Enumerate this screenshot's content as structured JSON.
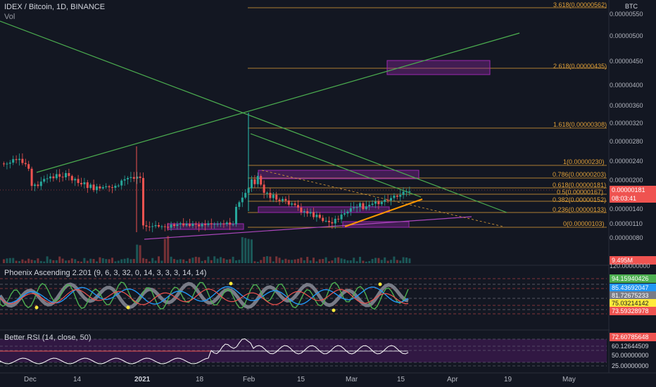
{
  "header": {
    "symbol": "IDEX / Bitcoin, 1D, BINANCE",
    "vol_label": "Vol"
  },
  "price_axis": {
    "unit": "BTC",
    "ticks": [
      "0.00000550",
      "0.00000500",
      "0.00000450",
      "0.00000400",
      "0.00000360",
      "0.00000320",
      "0.00000280",
      "0.00000240",
      "0.00000200",
      "0.00000140",
      "0.00000110",
      "0.00000080"
    ],
    "last_price": "0.00000181",
    "countdown": "08:03:41",
    "volume_value": "9.495M"
  },
  "fib_levels": [
    {
      "label": "3.618(0.00000562)"
    },
    {
      "label": "2.618(0.00000435)"
    },
    {
      "label": "1.618(0.00000308)"
    },
    {
      "label": "1(0.00000230)"
    },
    {
      "label": "0.786(0.00000203)"
    },
    {
      "label": "0.618(0.00000181)"
    },
    {
      "label": "0.5(0.00000167)"
    },
    {
      "label": "0.382(0.00000152)"
    },
    {
      "label": "0.236(0.00000133)"
    },
    {
      "label": "0(0.00000103)"
    }
  ],
  "phoenix": {
    "title": "Phoenix Ascending 2.201 (9, 6, 3, 32, 0, 14, 3, 3, 3, 14, 14)",
    "scale_top": "120.00000000",
    "values": [
      {
        "text": "94.15940426",
        "color": "#4caf50"
      },
      {
        "text": "85.43692047",
        "color": "#2196f3"
      },
      {
        "text": "81.72675233",
        "color": "#787b86"
      },
      {
        "text": "75.03214142",
        "color": "#ffeb3b"
      },
      {
        "text": "73.59328978",
        "color": "#ef5350"
      }
    ]
  },
  "rsi": {
    "title": "Better RSI (14, close, 50)",
    "values": [
      {
        "text": "72.60785648",
        "color": "#ef5350"
      },
      {
        "text": "60.12644509",
        "color": "#131722"
      },
      {
        "text": "50.00000000",
        "color": "#131722"
      },
      {
        "text": "25.00000000",
        "color": "#131722"
      }
    ]
  },
  "time_axis": [
    {
      "text": "Dec",
      "bold": false
    },
    {
      "text": "14",
      "bold": false
    },
    {
      "text": "2021",
      "bold": true
    },
    {
      "text": "18",
      "bold": false
    },
    {
      "text": "Feb",
      "bold": false
    },
    {
      "text": "15",
      "bold": false
    },
    {
      "text": "Mar",
      "bold": false
    },
    {
      "text": "15",
      "bold": false
    },
    {
      "text": "Apr",
      "bold": false
    },
    {
      "text": "19",
      "bold": false
    },
    {
      "text": "May",
      "bold": false
    }
  ],
  "colors": {
    "background": "#131722",
    "up": "#26a69a",
    "down": "#ef5350",
    "fib": "#e0a038",
    "trend": "#4caf50",
    "zone": "#9c27b0"
  }
}
